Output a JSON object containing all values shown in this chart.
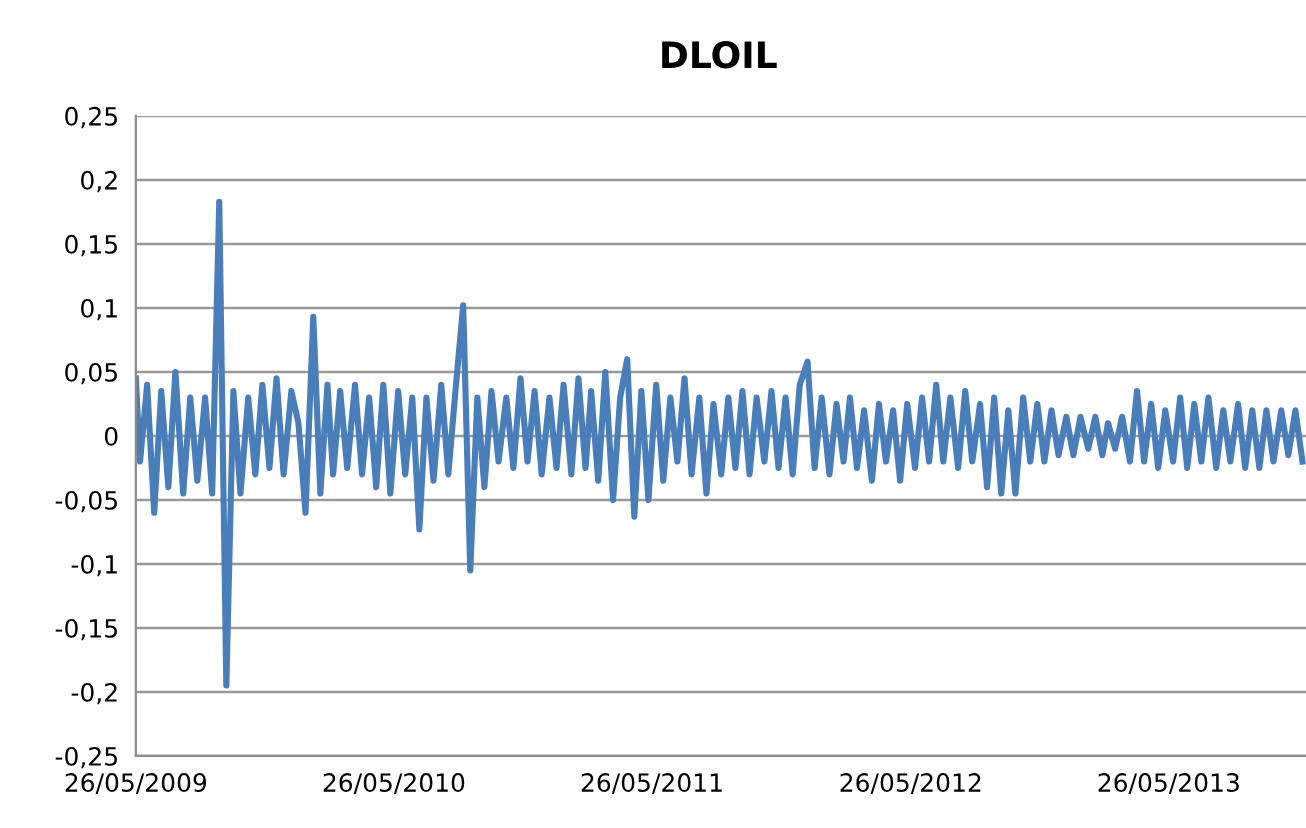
{
  "chart_data": {
    "type": "line",
    "title": "DLOIL",
    "x": [
      "2009-05-26",
      "2009-06-01",
      "2009-06-11",
      "2009-06-21",
      "2009-07-01",
      "2009-07-11",
      "2009-07-21",
      "2009-08-01",
      "2009-08-11",
      "2009-08-21",
      "2009-09-01",
      "2009-09-11",
      "2009-09-21",
      "2009-10-01",
      "2009-10-11",
      "2009-10-21",
      "2009-11-01",
      "2009-11-11",
      "2009-11-21",
      "2009-12-01",
      "2009-12-11",
      "2009-12-21",
      "2010-01-01",
      "2010-01-11",
      "2010-01-21",
      "2010-02-01",
      "2010-02-11",
      "2010-02-21",
      "2010-03-01",
      "2010-03-11",
      "2010-03-21",
      "2010-04-01",
      "2010-04-11",
      "2010-04-21",
      "2010-05-01",
      "2010-05-11",
      "2010-05-21",
      "2010-06-01",
      "2010-06-11",
      "2010-06-21",
      "2010-07-01",
      "2010-07-11",
      "2010-07-21",
      "2010-08-01",
      "2010-08-11",
      "2010-08-21",
      "2010-09-01",
      "2010-09-11",
      "2010-09-21",
      "2010-10-01",
      "2010-10-11",
      "2010-10-21",
      "2010-11-01",
      "2010-11-11",
      "2010-11-21",
      "2010-12-01",
      "2010-12-11",
      "2010-12-21",
      "2011-01-01",
      "2011-01-11",
      "2011-01-21",
      "2011-02-01",
      "2011-02-11",
      "2011-02-21",
      "2011-03-01",
      "2011-03-11",
      "2011-03-21",
      "2011-04-01",
      "2011-04-11",
      "2011-04-21",
      "2011-05-01",
      "2011-05-11",
      "2011-05-21",
      "2011-06-01",
      "2011-06-11",
      "2011-06-21",
      "2011-07-01",
      "2011-07-11",
      "2011-07-21",
      "2011-08-01",
      "2011-08-11",
      "2011-08-21",
      "2011-09-01",
      "2011-09-11",
      "2011-09-21",
      "2011-10-01",
      "2011-10-11",
      "2011-10-21",
      "2011-11-01",
      "2011-11-11",
      "2011-11-21",
      "2011-12-01",
      "2011-12-11",
      "2011-12-21",
      "2012-01-01",
      "2012-01-11",
      "2012-01-21",
      "2012-02-01",
      "2012-02-11",
      "2012-02-21",
      "2012-03-01",
      "2012-03-11",
      "2012-03-21",
      "2012-04-01",
      "2012-04-11",
      "2012-04-21",
      "2012-05-01",
      "2012-05-11",
      "2012-05-21",
      "2012-06-01",
      "2012-06-11",
      "2012-06-21",
      "2012-07-01",
      "2012-07-11",
      "2012-07-21",
      "2012-08-01",
      "2012-08-11",
      "2012-08-21",
      "2012-09-01",
      "2012-09-11",
      "2012-09-21",
      "2012-10-01",
      "2012-10-11",
      "2012-10-21",
      "2012-11-01",
      "2012-11-11",
      "2012-11-21",
      "2012-12-01",
      "2012-12-11",
      "2012-12-21",
      "2013-01-01",
      "2013-01-11",
      "2013-01-21",
      "2013-02-01",
      "2013-02-11",
      "2013-02-21",
      "2013-03-01",
      "2013-03-11",
      "2013-03-21",
      "2013-04-01",
      "2013-04-11",
      "2013-04-21",
      "2013-05-01",
      "2013-05-11",
      "2013-05-21",
      "2013-06-01",
      "2013-06-11",
      "2013-06-21",
      "2013-07-01",
      "2013-07-11",
      "2013-07-21",
      "2013-08-01",
      "2013-08-11",
      "2013-08-21",
      "2013-09-01",
      "2013-09-11",
      "2013-09-21",
      "2013-10-01",
      "2013-10-11",
      "2013-10-21",
      "2013-11-01",
      "2013-11-11",
      "2013-11-21",
      "2013-12-01"
    ],
    "series": [
      {
        "color": "#4a7ebb",
        "values": [
          0.045,
          -0.02,
          0.04,
          -0.06,
          0.035,
          -0.04,
          0.05,
          -0.045,
          0.03,
          -0.035,
          0.03,
          -0.045,
          0.183,
          -0.195,
          0.035,
          -0.045,
          0.03,
          -0.03,
          0.04,
          -0.025,
          0.045,
          -0.03,
          0.035,
          0.01,
          -0.06,
          0.093,
          -0.045,
          0.04,
          -0.03,
          0.035,
          -0.025,
          0.04,
          -0.03,
          0.03,
          -0.04,
          0.04,
          -0.045,
          0.035,
          -0.03,
          0.03,
          -0.073,
          0.03,
          -0.035,
          0.04,
          -0.03,
          0.035,
          0.102,
          -0.105,
          0.03,
          -0.04,
          0.035,
          -0.02,
          0.03,
          -0.025,
          0.045,
          -0.02,
          0.035,
          -0.03,
          0.03,
          -0.025,
          0.04,
          -0.03,
          0.045,
          -0.025,
          0.035,
          -0.035,
          0.05,
          -0.05,
          0.03,
          0.06,
          -0.063,
          0.035,
          -0.05,
          0.04,
          -0.035,
          0.03,
          -0.02,
          0.045,
          -0.03,
          0.03,
          -0.045,
          0.025,
          -0.03,
          0.03,
          -0.025,
          0.035,
          -0.03,
          0.03,
          -0.02,
          0.035,
          -0.025,
          0.03,
          -0.03,
          0.04,
          0.058,
          -0.025,
          0.03,
          -0.03,
          0.025,
          -0.02,
          0.03,
          -0.025,
          0.02,
          -0.035,
          0.025,
          -0.02,
          0.02,
          -0.035,
          0.025,
          -0.025,
          0.03,
          -0.02,
          0.04,
          -0.02,
          0.03,
          -0.025,
          0.035,
          -0.02,
          0.025,
          -0.04,
          0.03,
          -0.045,
          0.02,
          -0.045,
          0.03,
          -0.02,
          0.025,
          -0.02,
          0.02,
          -0.015,
          0.015,
          -0.015,
          0.015,
          -0.01,
          0.015,
          -0.015,
          0.01,
          -0.01,
          0.015,
          -0.02,
          0.035,
          -0.02,
          0.025,
          -0.025,
          0.02,
          -0.02,
          0.03,
          -0.025,
          0.025,
          -0.02,
          0.03,
          -0.025,
          0.02,
          -0.02,
          0.025,
          -0.025,
          0.02,
          -0.025,
          0.02,
          -0.02,
          0.02,
          -0.015,
          0.02,
          -0.02
        ]
      }
    ],
    "xlim": [
      "2009-05-26",
      "2013-12-06"
    ],
    "xticks": [
      {
        "value": "2009-05-26",
        "label": "26/05/2009"
      },
      {
        "value": "2010-05-26",
        "label": "26/05/2010"
      },
      {
        "value": "2011-05-26",
        "label": "26/05/2011"
      },
      {
        "value": "2012-05-26",
        "label": "26/05/2012"
      },
      {
        "value": "2013-05-26",
        "label": "26/05/2013"
      }
    ],
    "ylim": [
      -0.25,
      0.25
    ],
    "yticks": [
      {
        "value": -0.25,
        "label": "-0,25"
      },
      {
        "value": -0.2,
        "label": "-0,2"
      },
      {
        "value": -0.15,
        "label": "-0,15"
      },
      {
        "value": -0.1,
        "label": "-0,1"
      },
      {
        "value": -0.05,
        "label": "-0,05"
      },
      {
        "value": 0,
        "label": "0"
      },
      {
        "value": 0.05,
        "label": "0,05"
      },
      {
        "value": 0.1,
        "label": "0,1"
      },
      {
        "value": 0.15,
        "label": "0,15"
      },
      {
        "value": 0.2,
        "label": "0,2"
      },
      {
        "value": 0.25,
        "label": "0,25"
      }
    ],
    "grid": "y",
    "marker": "none",
    "line_style": "solid"
  }
}
